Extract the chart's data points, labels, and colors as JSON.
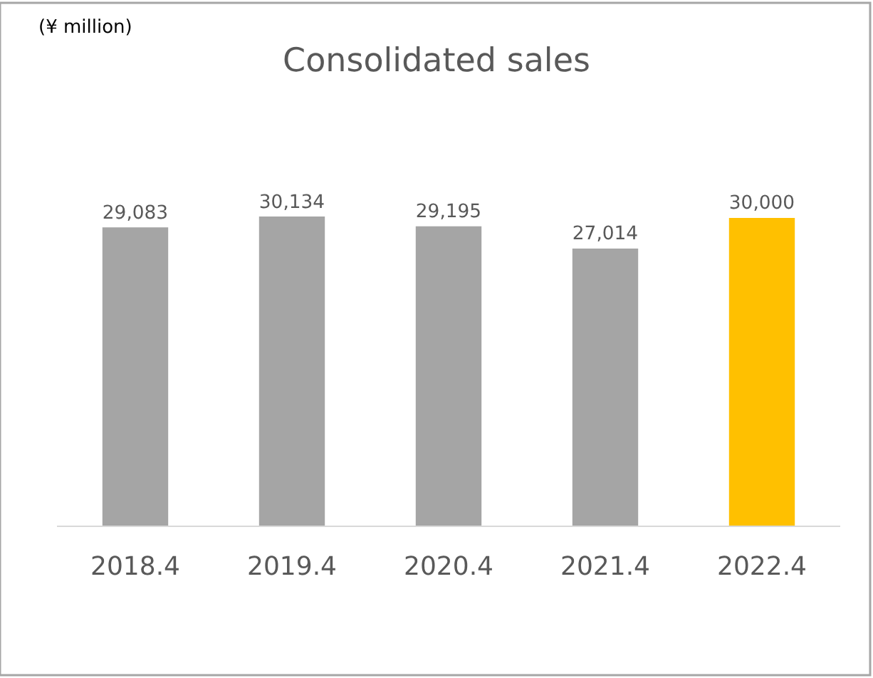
{
  "chart_data": {
    "type": "bar",
    "title": "Consolidated sales",
    "annotations": [
      "(¥ million)"
    ],
    "categories": [
      "2018.4",
      "2019.4",
      "2020.4",
      "2021.4",
      "2022.4"
    ],
    "values": [
      29083,
      30134,
      29195,
      27014,
      30000
    ],
    "colors": [
      "#a5a5a5",
      "#a5a5a5",
      "#a5a5a5",
      "#a5a5a5",
      "#ffc000"
    ],
    "value_labels": [
      "29,083",
      "30,134",
      "29,195",
      "27,014",
      "30,000"
    ]
  }
}
